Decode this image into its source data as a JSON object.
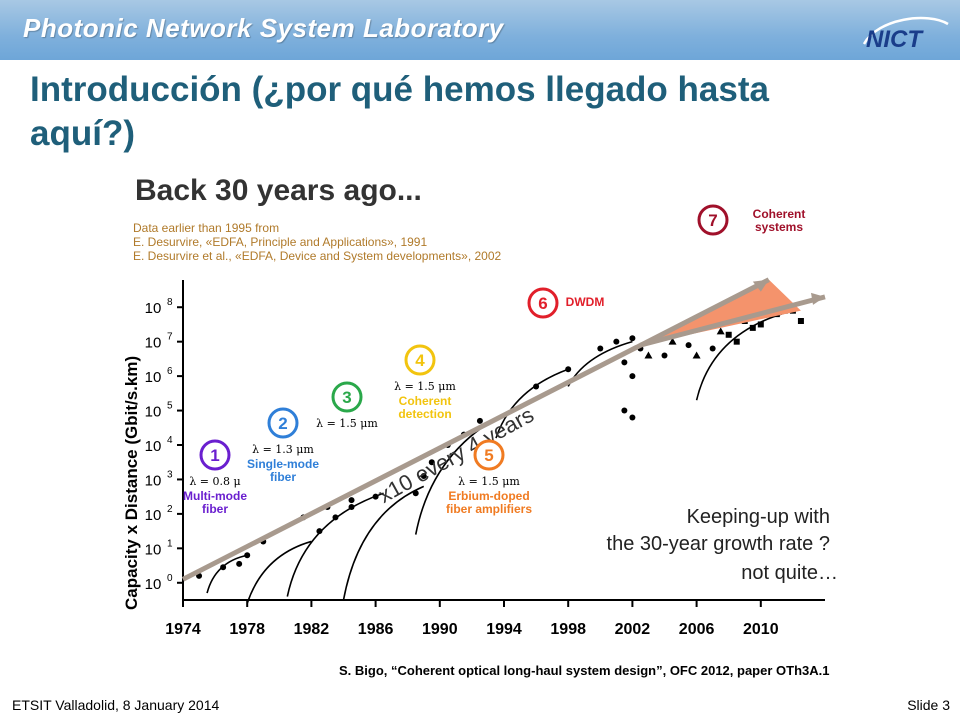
{
  "header": {
    "lab_title": "Photonic Network System Laboratory",
    "logo_text": "NICT"
  },
  "slide": {
    "title_line1": "Introducción (¿por qué hemos llegado hasta",
    "title_line2": "aquí?)"
  },
  "figure": {
    "heading": "Back 30 years ago...",
    "source_note": [
      "Data earlier than 1995 from",
      "E. Desurvire, «EDFA, Principle and Applications», 1991",
      "E. Desurvire et al., «EDFA, Device and System developments», 2002"
    ],
    "trend_label": "x10 every 4 years",
    "keeping_up": [
      "Keeping-up with",
      "the 30-year growth rate ?",
      "not quite…"
    ],
    "milestones": [
      {
        "num": "1",
        "detail": "λ = 0.8 μ",
        "caption": [
          "Multi-mode",
          "fiber"
        ],
        "color": "#6a1fcf"
      },
      {
        "num": "2",
        "detail": "λ = 1.3 μm",
        "caption": [
          "Single-mode",
          "fiber"
        ],
        "color": "#2f7fd8"
      },
      {
        "num": "3",
        "detail": "λ = 1.5 μm",
        "caption": [],
        "color": "#2aa84a"
      },
      {
        "num": "4",
        "detail": "λ = 1.5 μm",
        "caption": [
          "Coherent",
          "detection"
        ],
        "color": "#f2c40f"
      },
      {
        "num": "5",
        "detail": "λ = 1.5 μm",
        "caption": [
          "Erbium-doped",
          "fiber amplifiers"
        ],
        "color": "#f07b22"
      },
      {
        "num": "6",
        "detail": "",
        "caption": [
          "DWDM"
        ],
        "color": "#e11f2a"
      },
      {
        "num": "7",
        "detail": "",
        "caption": [
          "Coherent",
          "systems"
        ],
        "color": "#a0102a"
      }
    ],
    "colors": {
      "trend_arrow": "#a89a8e",
      "gap_fill": "#f4936c",
      "axis": "#000000"
    }
  },
  "chart_data": {
    "type": "scatter",
    "ylabel": "Capacity x Distance (Gbit/s.km)",
    "xlabel": "",
    "x_tick_labels": [
      "1974",
      "1978",
      "1982",
      "1986",
      "1990",
      "1994",
      "1998",
      "2002",
      "2006",
      "2010"
    ],
    "y_tick_labels": [
      "10",
      "10",
      "10",
      "10",
      "10",
      "10",
      "10",
      "10",
      "10"
    ],
    "y_tick_exponents": [
      "0",
      "1",
      "2",
      "3",
      "4",
      "5",
      "6",
      "7",
      "8"
    ],
    "xlim": [
      1974,
      2014
    ],
    "ylim_log10": [
      -0.5,
      8.5
    ],
    "points": [
      [
        1975,
        0.2
      ],
      [
        1976.5,
        0.45
      ],
      [
        1977.5,
        0.55
      ],
      [
        1978,
        0.8
      ],
      [
        1979,
        1.2
      ],
      [
        1981.5,
        1.9
      ],
      [
        1983,
        2.2
      ],
      [
        1984.5,
        2.4
      ],
      [
        1986,
        2.5
      ],
      [
        1982.5,
        1.5
      ],
      [
        1983.5,
        1.9
      ],
      [
        1984.5,
        2.2
      ],
      [
        1988.5,
        2.6
      ],
      [
        1989,
        3.1
      ],
      [
        1989.5,
        3.5
      ],
      [
        1990.5,
        4.0
      ],
      [
        1991.5,
        4.3
      ],
      [
        1992.5,
        4.7
      ],
      [
        1996,
        5.7
      ],
      [
        1998,
        6.2
      ],
      [
        2000,
        6.8
      ],
      [
        2001,
        7.0
      ],
      [
        2002,
        7.1
      ],
      [
        2002.5,
        6.8
      ],
      [
        2001.5,
        6.4
      ],
      [
        2002,
        6.0
      ],
      [
        2003,
        6.6
      ],
      [
        2004,
        6.6
      ],
      [
        2004.5,
        7.0
      ],
      [
        2005.5,
        6.9
      ],
      [
        2006,
        6.6
      ],
      [
        2007,
        6.8
      ],
      [
        2007.5,
        7.3
      ],
      [
        2008,
        7.2
      ],
      [
        2008.5,
        7.0
      ],
      [
        2009,
        7.6
      ],
      [
        2009.5,
        7.4
      ],
      [
        2010,
        7.5
      ],
      [
        2010.5,
        7.8
      ],
      [
        2011,
        7.8
      ],
      [
        2011.5,
        7.9
      ],
      [
        2012,
        7.9
      ],
      [
        2012.5,
        7.6
      ],
      [
        2001.5,
        5.0
      ],
      [
        2002,
        4.8
      ]
    ]
  },
  "citation": "S. Bigo, “Coherent optical long-haul system design”, OFC 2012, paper OTh3A.1",
  "footer": {
    "left": "ETSIT Valladolid, 8 January 2014",
    "right": "Slide 3"
  }
}
